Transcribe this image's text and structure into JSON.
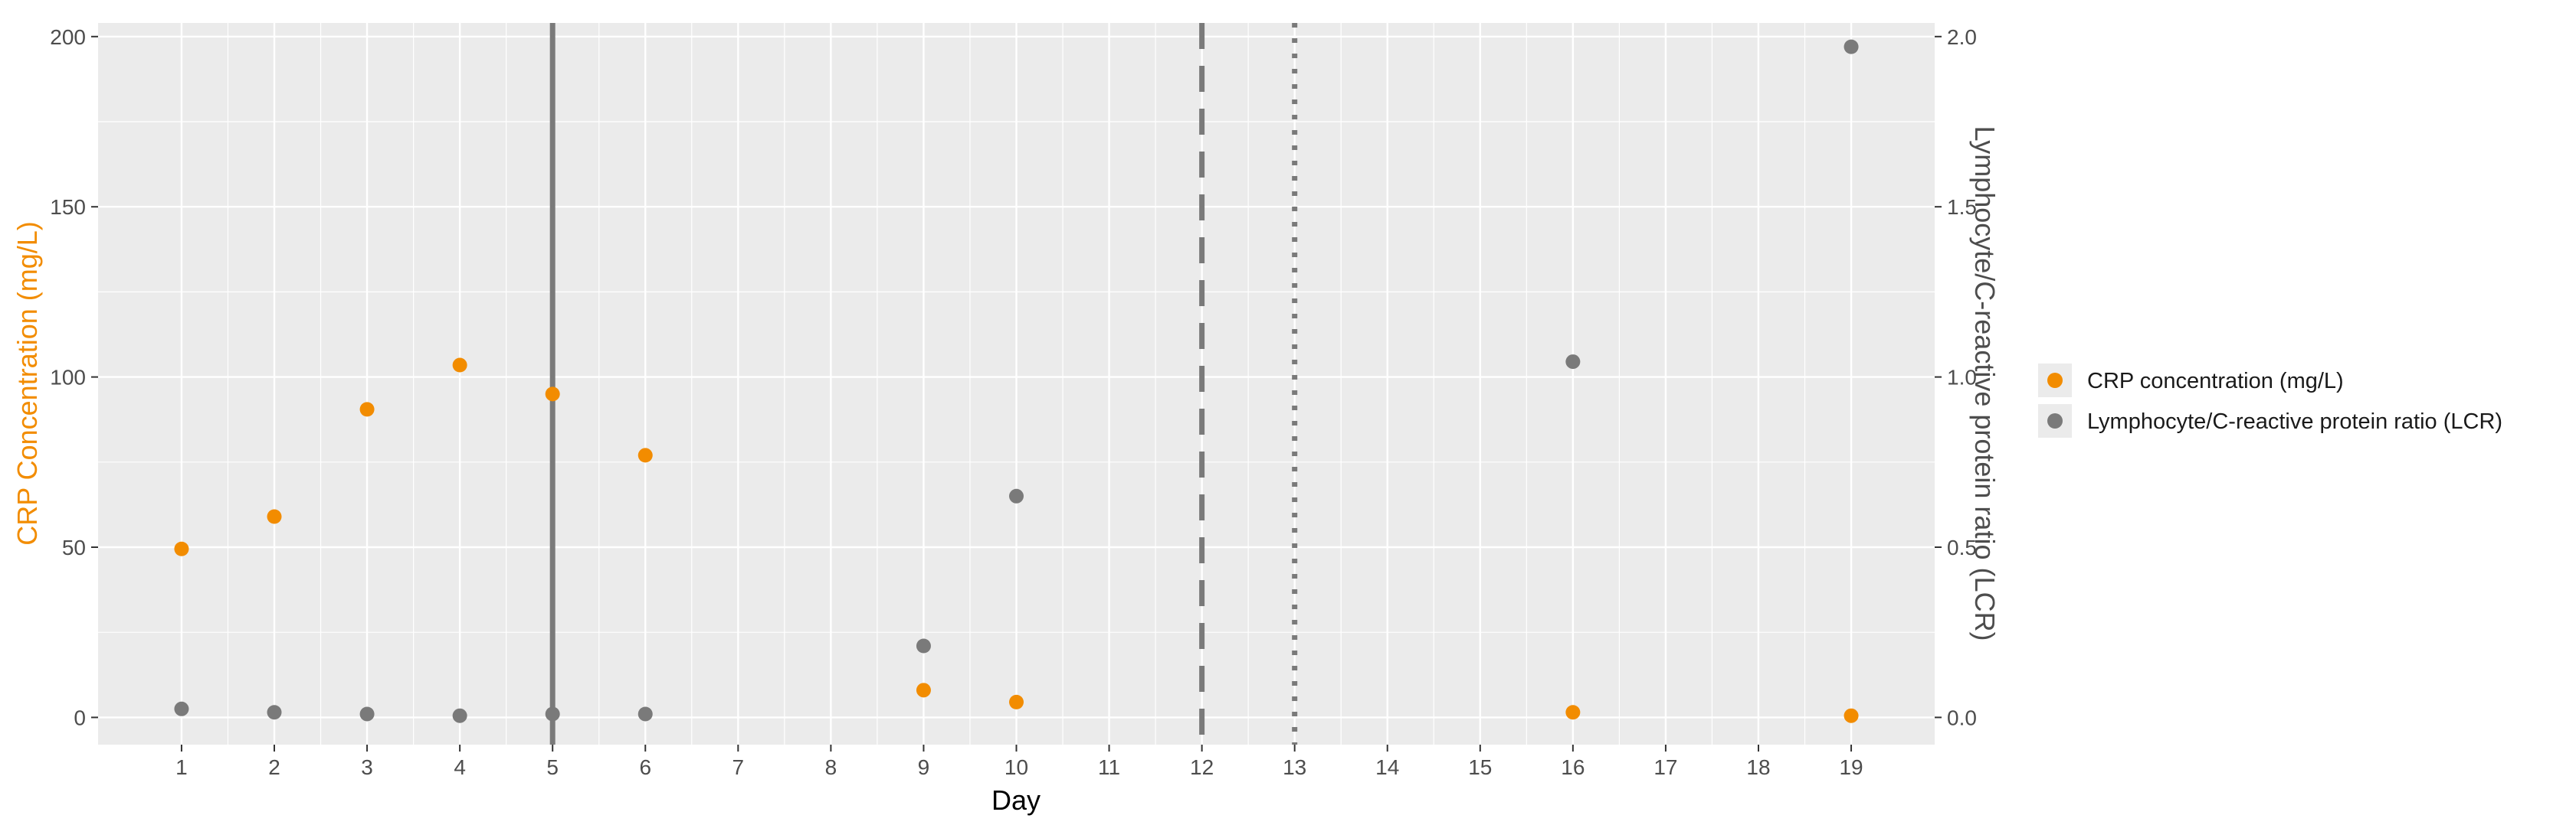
{
  "chart_data": {
    "type": "scatter",
    "xlabel": "Day",
    "ylabel": "CRP Concentration (mg/L)",
    "y2label": "Lymphocyte/C-reactive protein ratio (LCR)",
    "x_ticks": [
      1,
      2,
      3,
      4,
      5,
      6,
      7,
      8,
      9,
      10,
      11,
      12,
      13,
      14,
      15,
      16,
      17,
      18,
      19
    ],
    "xlim": [
      0.1,
      19.9
    ],
    "ylim": [
      -8,
      204
    ],
    "y_ticks": [
      0,
      50,
      100,
      150,
      200
    ],
    "y2lim": [
      -0.08,
      2.04
    ],
    "y2_ticks": [
      "0.0",
      "0.5",
      "1.0",
      "1.5",
      "2.0"
    ],
    "grid": true,
    "legend_position": "right",
    "colors": {
      "crp": "#f28c00",
      "lcr": "#7a7a7a",
      "panel": "#ebebeb",
      "grid": "#ffffff",
      "vline": "#7a7a7a"
    },
    "series": [
      {
        "name": "CRP concentration (mg/L)",
        "axis": "left",
        "color": "#f28c00",
        "x": [
          1,
          2,
          3,
          4,
          5,
          6,
          9,
          10,
          16,
          19
        ],
        "y": [
          49.5,
          59,
          90.5,
          103.5,
          95,
          77,
          8,
          4.5,
          1.5,
          0.5
        ]
      },
      {
        "name": "Lymphocyte/C-reactive protein ratio (LCR)",
        "axis": "right",
        "color": "#7a7a7a",
        "x": [
          1,
          2,
          3,
          4,
          5,
          6,
          9,
          10,
          16,
          19
        ],
        "y": [
          0.025,
          0.015,
          0.01,
          0.005,
          0.01,
          0.01,
          0.21,
          0.65,
          1.045,
          1.97
        ]
      }
    ],
    "vlines": [
      {
        "x": 5,
        "style": "solid"
      },
      {
        "x": 12,
        "style": "dashed"
      },
      {
        "x": 13,
        "style": "dotted"
      }
    ]
  }
}
